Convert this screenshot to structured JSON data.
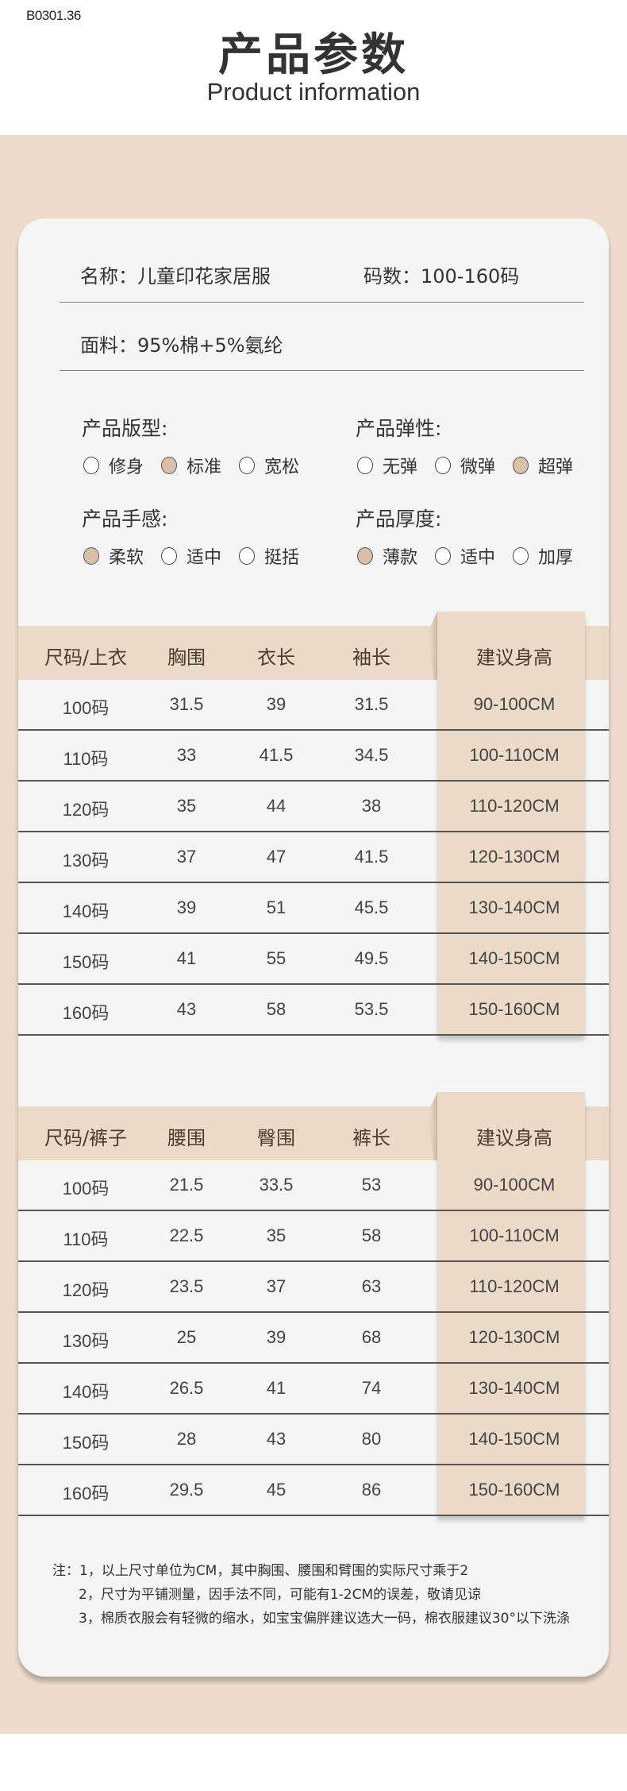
{
  "product_code": "B0301.36",
  "header": {
    "title": "产品参数",
    "subtitle": "Product information"
  },
  "info": {
    "name": "名称：儿童印花家居服",
    "sizes": "码数：100-160码",
    "fabric": "面料：95%棉+5%氨纶"
  },
  "attributes": [
    {
      "title": "产品版型:",
      "options": [
        {
          "label": "修身",
          "selected": false
        },
        {
          "label": "标准",
          "selected": true
        },
        {
          "label": "宽松",
          "selected": false
        }
      ]
    },
    {
      "title": "产品弹性:",
      "options": [
        {
          "label": "无弹",
          "selected": false
        },
        {
          "label": "微弹",
          "selected": false
        },
        {
          "label": "超弹",
          "selected": true
        }
      ]
    },
    {
      "title": "产品手感:",
      "options": [
        {
          "label": "柔软",
          "selected": true
        },
        {
          "label": "适中",
          "selected": false
        },
        {
          "label": "挺括",
          "selected": false
        }
      ]
    },
    {
      "title": "产品厚度:",
      "options": [
        {
          "label": "薄款",
          "selected": true
        },
        {
          "label": "适中",
          "selected": false
        },
        {
          "label": "加厚",
          "selected": false
        }
      ]
    }
  ],
  "tables": [
    {
      "headers": [
        "尺码/上衣",
        "胸围",
        "衣长",
        "袖长",
        "建议身高"
      ],
      "rows": [
        [
          "100码",
          "31.5",
          "39",
          "31.5",
          "90-100CM"
        ],
        [
          "110码",
          "33",
          "41.5",
          "34.5",
          "100-110CM"
        ],
        [
          "120码",
          "35",
          "44",
          "38",
          "110-120CM"
        ],
        [
          "130码",
          "37",
          "47",
          "41.5",
          "120-130CM"
        ],
        [
          "140码",
          "39",
          "51",
          "45.5",
          "130-140CM"
        ],
        [
          "150码",
          "41",
          "55",
          "49.5",
          "140-150CM"
        ],
        [
          "160码",
          "43",
          "58",
          "53.5",
          "150-160CM"
        ]
      ]
    },
    {
      "headers": [
        "尺码/裤子",
        "腰围",
        "臀围",
        "裤长",
        "建议身高"
      ],
      "rows": [
        [
          "100码",
          "21.5",
          "33.5",
          "53",
          "90-100CM"
        ],
        [
          "110码",
          "22.5",
          "35",
          "58",
          "100-110CM"
        ],
        [
          "120码",
          "23.5",
          "37",
          "63",
          "110-120CM"
        ],
        [
          "130码",
          "25",
          "39",
          "68",
          "120-130CM"
        ],
        [
          "140码",
          "26.5",
          "41",
          "74",
          "130-140CM"
        ],
        [
          "150码",
          "28",
          "43",
          "80",
          "140-150CM"
        ],
        [
          "160码",
          "29.5",
          "45",
          "86",
          "150-160CM"
        ]
      ]
    }
  ],
  "notes": [
    "注：1，以上尺寸单位为CM，其中胸围、腰围和臂围的实际尺寸乘于2",
    "2，尺寸为平铺测量，因手法不同，可能有1-2CM的误差，敬请见谅",
    "3，棉质衣服会有轻微的缩水，如宝宝偏胖建议选大一码，棉衣服建议30°以下洗涤"
  ],
  "colors": {
    "band": "#eddccc",
    "card": "#f5f5f5",
    "highlight": "#ecdac8",
    "radio_selected": "#d8c0a9",
    "text": "#333333"
  }
}
